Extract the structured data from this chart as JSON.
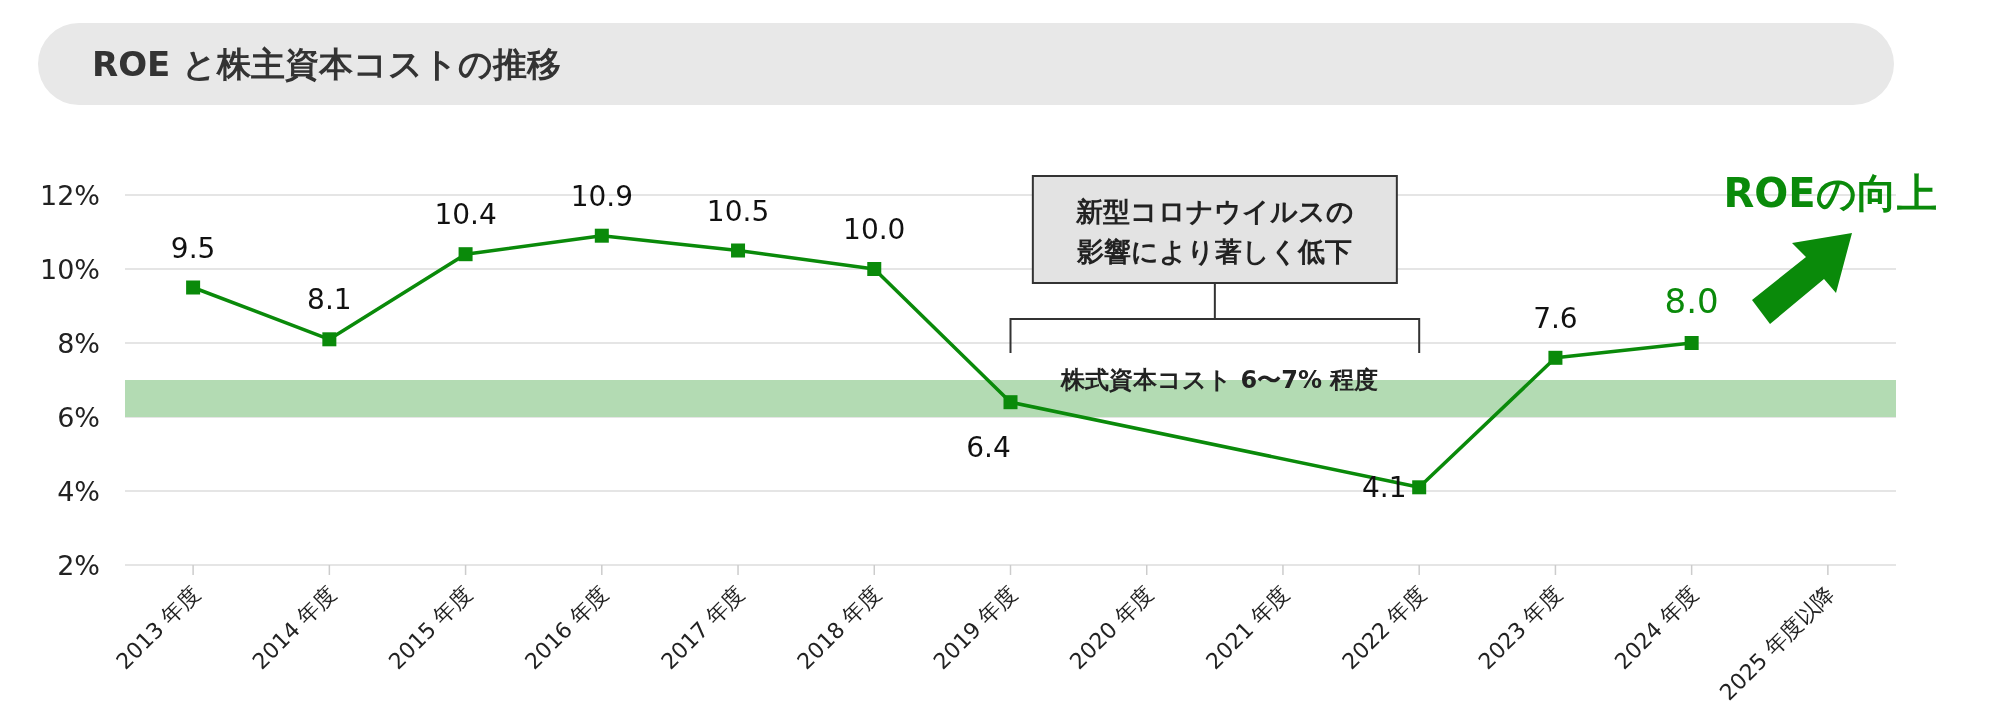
{
  "chart_data": {
    "type": "line",
    "title": "ROE と株主資本コストの推移",
    "categories": [
      "2013 年度",
      "2014 年度",
      "2015 年度",
      "2016 年度",
      "2017 年度",
      "2018 年度",
      "2019 年度",
      "2020 年度",
      "2021 年度",
      "2022 年度",
      "2023 年度",
      "2024 年度",
      "2025 年度以降"
    ],
    "series": [
      {
        "color": "#0a8a0a",
        "values": [
          9.5,
          8.1,
          10.4,
          10.9,
          10.5,
          10.0,
          6.4,
          null,
          null,
          4.1,
          7.6,
          8.0,
          null
        ],
        "value_labels": [
          "9.5",
          "8.1",
          "10.4",
          "10.9",
          "10.5",
          "10.0",
          "6.4",
          null,
          null,
          "4.1",
          "7.6",
          "8.0",
          null
        ]
      }
    ],
    "ylim": [
      2,
      12
    ],
    "yticks": [
      {
        "value": 2,
        "label": "2%"
      },
      {
        "value": 4,
        "label": "4%"
      },
      {
        "value": 6,
        "label": "6%"
      },
      {
        "value": 8,
        "label": "8%"
      },
      {
        "value": 10,
        "label": "10%"
      },
      {
        "value": 12,
        "label": "12%"
      }
    ],
    "bands": [
      {
        "axis": "y",
        "from": 6,
        "to": 7,
        "label": "株式資本コスト 6〜7% 程度",
        "color": "#b3dbb3"
      }
    ],
    "annotations": [
      "新型コロナウイルスの影響により著しく低下",
      "ROEの向上"
    ],
    "grid": "y",
    "marker": "square",
    "line_style": "solid"
  }
}
